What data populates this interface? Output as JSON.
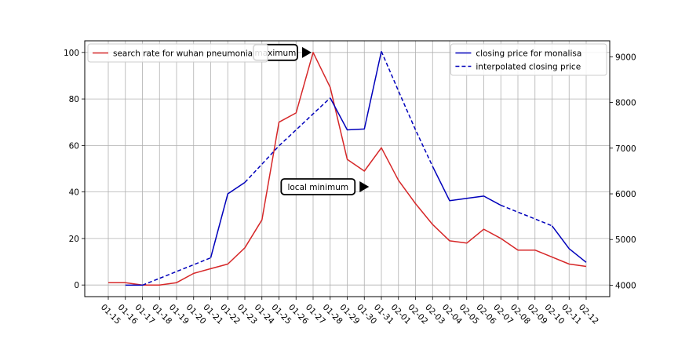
{
  "chart_data": {
    "type": "line",
    "categories": [
      "01-15",
      "01-16",
      "01-17",
      "01-18",
      "01-19",
      "01-20",
      "01-21",
      "01-22",
      "01-23",
      "01-24",
      "01-25",
      "01-26",
      "01-27",
      "01-28",
      "01-29",
      "01-30",
      "01-31",
      "02-01",
      "02-02",
      "02-03",
      "02-04",
      "02-05",
      "02-06",
      "02-07",
      "02-08",
      "02-09",
      "02-10",
      "02-11",
      "02-12"
    ],
    "left_axis": {
      "ylim": [
        -5,
        105
      ],
      "ticks": [
        0,
        20,
        40,
        60,
        80,
        100
      ]
    },
    "right_axis": {
      "ylim": [
        3750,
        9350
      ],
      "ticks": [
        4000,
        5000,
        6000,
        7000,
        8000,
        9000
      ]
    },
    "grid": true,
    "series": [
      {
        "name": "search rate for wuhan pneumonia",
        "axis": "left",
        "color": "#d62728",
        "style": "solid",
        "values": [
          1,
          1,
          0,
          0,
          1,
          5,
          7,
          9,
          16,
          28,
          70,
          74,
          100,
          85,
          54,
          49,
          59,
          45,
          35,
          26,
          19,
          18,
          24,
          20,
          15,
          15,
          12,
          9,
          8
        ]
      },
      {
        "name": "closing price for monalisa",
        "axis": "right",
        "color": "#0000bb",
        "style": "solid",
        "values": [
          null,
          4000,
          4000,
          null,
          null,
          null,
          4600,
          6000,
          6250,
          null,
          null,
          null,
          null,
          8100,
          7400,
          7420,
          9120,
          null,
          null,
          6600,
          5850,
          5900,
          5950,
          5750,
          null,
          null,
          5300,
          4800,
          4500
        ]
      },
      {
        "name": "interpolated closing price",
        "axis": "right",
        "color": "#0000bb",
        "style": "dashed",
        "values": [
          null,
          null,
          4000,
          4150,
          4300,
          4450,
          4600,
          null,
          6250,
          6650,
          7050,
          7400,
          7750,
          8100,
          null,
          null,
          9120,
          8250,
          7400,
          6600,
          null,
          null,
          null,
          5750,
          5600,
          5450,
          5300,
          null,
          null
        ]
      }
    ],
    "legends": [
      {
        "position": "top-left",
        "entries": [
          "search rate for wuhan pneumonia"
        ]
      },
      {
        "position": "top-right",
        "entries": [
          "closing price for monalisa",
          "interpolated closing price"
        ]
      }
    ],
    "annotations": [
      {
        "text": "maximum",
        "x_index": 12,
        "y": 100,
        "axis": "left"
      },
      {
        "text": "local minimum",
        "x_index": 15,
        "y": 49,
        "axis": "left"
      }
    ]
  }
}
